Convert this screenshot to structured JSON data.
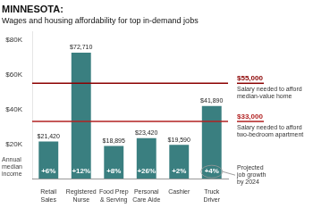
{
  "chart_data": {
    "type": "bar",
    "title": "MINNESOTA:",
    "subtitle": "Wages and housing affordability for top in-demand jobs",
    "categories": [
      "Retail\nSales",
      "Registered\nNurse",
      "Food Prep\n& Serving",
      "Personal\nCare Aide",
      "Cashier",
      "Truck\nDriver"
    ],
    "values": [
      21420,
      72710,
      18895,
      23420,
      19590,
      41890
    ],
    "value_labels": [
      "$21,420",
      "$72,710",
      "$18,895",
      "$23,420",
      "$19,590",
      "$41,890"
    ],
    "data_labels": true,
    "color": "#3a7f80",
    "ylabel": "Annual\nmedian\nincome",
    "ylim": [
      0,
      85000
    ],
    "yticks": [
      {
        "value": 20000,
        "label": "$20K"
      },
      {
        "value": 40000,
        "label": "$40K"
      },
      {
        "value": 60000,
        "label": "$60K"
      },
      {
        "value": 80000,
        "label": "$80K"
      }
    ],
    "grid": false,
    "growth_labels": [
      "+6%",
      "+12%",
      "+8%",
      "+26%",
      "+2%",
      "+4%"
    ],
    "reference_lines": [
      {
        "value": 55000,
        "label": "$55,000",
        "description": "Salary needed to afford\nmedian-value home",
        "color": "#8b0000"
      },
      {
        "value": 33000,
        "label": "$33,000",
        "description": "Salary needed to afford\ntwo-bedroom apartment",
        "color": "#b22222"
      }
    ],
    "annotations": [
      "Projected\njob growth\nby 2024"
    ]
  }
}
